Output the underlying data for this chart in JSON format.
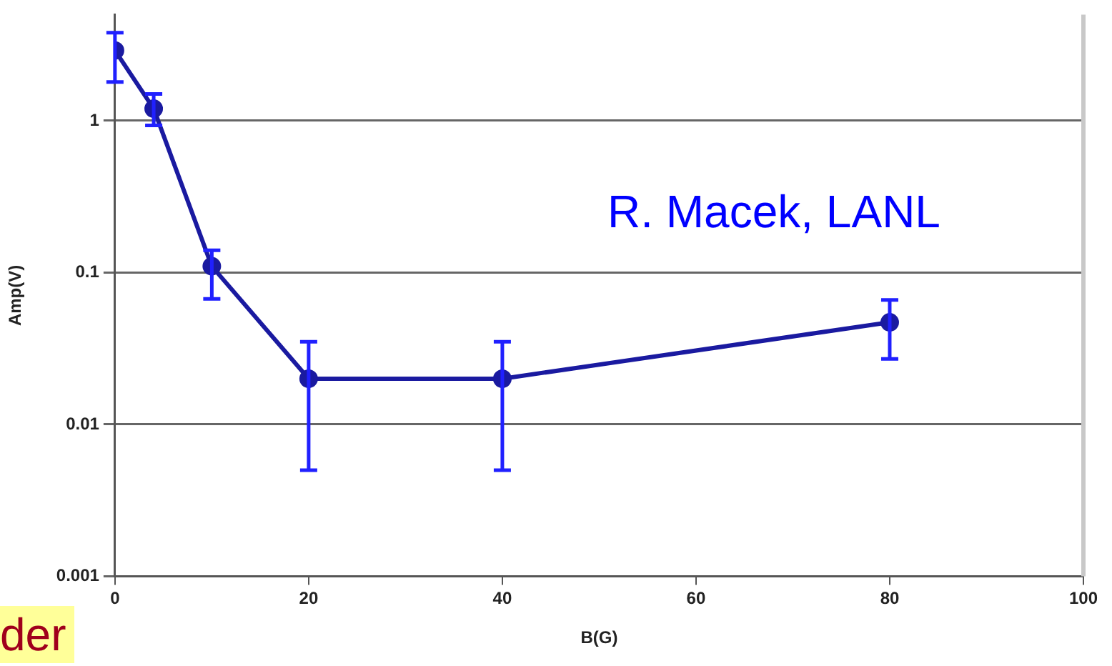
{
  "chart_data": {
    "type": "line",
    "xlabel": "B(G)",
    "ylabel": "Amp(V)",
    "x": [
      0,
      4,
      10,
      20,
      40,
      80
    ],
    "series": [
      {
        "color": "#1a1aa0",
        "values": [
          2.9,
          1.2,
          0.11,
          0.02,
          0.02,
          0.047
        ],
        "errors": [
          [
            1.8,
            3.8
          ],
          [
            0.93,
            1.5
          ],
          [
            0.067,
            0.14
          ],
          [
            0.005,
            0.035
          ],
          [
            0.005,
            0.035
          ],
          [
            0.027,
            0.066
          ]
        ]
      }
    ],
    "xlim": [
      0,
      100
    ],
    "xticks": [
      0,
      20,
      40,
      60,
      80,
      100
    ],
    "ylim": [
      0.001,
      5
    ],
    "yticks": [
      0.001,
      0.01,
      0.1,
      1
    ],
    "log": "y",
    "grid": "y",
    "legend": false,
    "marker": "circle",
    "line_style": "solid",
    "annotations": [
      "R. Macek, LANL",
      "der"
    ]
  }
}
